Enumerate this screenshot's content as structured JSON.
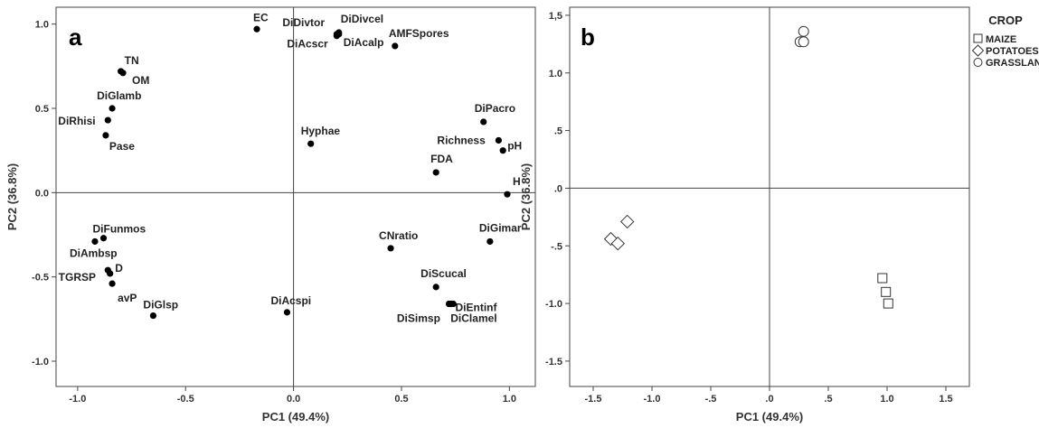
{
  "chart_data": [
    {
      "type": "scatter",
      "panel": "a",
      "xlabel": "PC1 (49.4%)",
      "ylabel": "PC2 (36.8%)",
      "xlim": [
        -1.1,
        1.12
      ],
      "ylim": [
        -1.15,
        1.1
      ],
      "xticks": [
        -1.0,
        -0.5,
        0.0,
        0.5,
        1.0
      ],
      "xtick_labels": [
        "-1.0",
        "-0.5",
        "0.0",
        "0.5",
        "1.0"
      ],
      "yticks": [
        -1.0,
        -0.5,
        0.0,
        0.5,
        1.0
      ],
      "ytick_labels": [
        "-1.0",
        "-0.5",
        "0.0",
        "0.5",
        "1.0"
      ],
      "points": [
        {
          "label": "EC",
          "x": -0.17,
          "y": 0.97
        },
        {
          "label": "DiDivtor",
          "x": 0.2,
          "y": 0.94
        },
        {
          "label": "DiDivcel",
          "x": 0.21,
          "y": 0.95
        },
        {
          "label": "DiAcscr",
          "x": 0.2,
          "y": 0.93
        },
        {
          "label": "DiAcalp",
          "x": 0.21,
          "y": 0.94
        },
        {
          "label": "AMFSpores",
          "x": 0.47,
          "y": 0.87
        },
        {
          "label": "TN",
          "x": -0.8,
          "y": 0.72
        },
        {
          "label": "OM",
          "x": -0.79,
          "y": 0.71
        },
        {
          "label": "DiGlamb",
          "x": -0.84,
          "y": 0.5
        },
        {
          "label": "DiRhisi",
          "x": -0.86,
          "y": 0.43
        },
        {
          "label": "Pase",
          "x": -0.87,
          "y": 0.34
        },
        {
          "label": "Hyphae",
          "x": 0.08,
          "y": 0.29
        },
        {
          "label": "DiPacro",
          "x": 0.88,
          "y": 0.42
        },
        {
          "label": "Richness",
          "x": 0.95,
          "y": 0.31
        },
        {
          "label": "pH",
          "x": 0.97,
          "y": 0.25
        },
        {
          "label": "FDA",
          "x": 0.66,
          "y": 0.12
        },
        {
          "label": "H",
          "x": 0.99,
          "y": -0.01
        },
        {
          "label": "DiFunmos",
          "x": -0.88,
          "y": -0.27
        },
        {
          "label": "DiAmbsp",
          "x": -0.92,
          "y": -0.29
        },
        {
          "label": "D",
          "x": -0.86,
          "y": -0.46
        },
        {
          "label": "TGRSP",
          "x": -0.85,
          "y": -0.48
        },
        {
          "label": "avP",
          "x": -0.84,
          "y": -0.54
        },
        {
          "label": "DiGlsp",
          "x": -0.65,
          "y": -0.73
        },
        {
          "label": "CNratio",
          "x": 0.45,
          "y": -0.33
        },
        {
          "label": "DiGimar",
          "x": 0.91,
          "y": -0.29
        },
        {
          "label": "DiScucal",
          "x": 0.66,
          "y": -0.56
        },
        {
          "label": "DiEntinf",
          "x": 0.72,
          "y": -0.66
        },
        {
          "label": "DiSimsp",
          "x": 0.73,
          "y": -0.66
        },
        {
          "label": "DiClamel",
          "x": 0.74,
          "y": -0.66
        },
        {
          "label": "DiAcspi",
          "x": -0.03,
          "y": -0.71
        }
      ]
    },
    {
      "type": "scatter",
      "panel": "b",
      "xlabel": "PC1 (49.4%)",
      "ylabel": "PC2 (36.8%)",
      "xlim": [
        -1.7,
        1.7
      ],
      "ylim": [
        -1.72,
        1.57
      ],
      "xticks": [
        -1.5,
        -1.0,
        -0.5,
        0.0,
        0.5,
        1.0,
        1.5
      ],
      "xtick_labels": [
        "-1.5",
        "-1.0",
        "-.5",
        ".0",
        ".5",
        "1.0",
        "1.5"
      ],
      "yticks": [
        -1.5,
        -1.0,
        -0.5,
        0.0,
        0.5,
        1.0,
        1.5
      ],
      "ytick_labels": [
        "-1.5",
        "-1.0",
        "-.5",
        ".0",
        ".5",
        "1.0",
        "1,5"
      ],
      "legend_title": "CROP",
      "legend_position": "right",
      "series": [
        {
          "name": "MAIZE",
          "marker": "square",
          "x": [
            0.96,
            0.99,
            1.01
          ],
          "y": [
            -0.78,
            -0.9,
            -1.0
          ]
        },
        {
          "name": "POTATOES",
          "marker": "diamond",
          "x": [
            -1.21,
            -1.35,
            -1.29
          ],
          "y": [
            -0.29,
            -0.44,
            -0.48
          ]
        },
        {
          "name": "GRASSLAND",
          "marker": "circle",
          "x": [
            0.29,
            0.26,
            0.29
          ],
          "y": [
            1.36,
            1.27,
            1.27
          ]
        }
      ]
    }
  ]
}
